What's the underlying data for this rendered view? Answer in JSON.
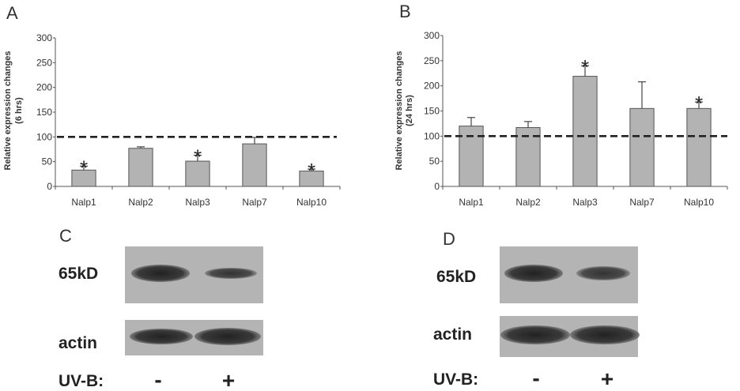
{
  "chart_data": [
    {
      "type": "bar",
      "panel": "A",
      "ylabel": "Relative expression changes",
      "ylabel_sub": "(6 hrs)",
      "categories": [
        "Nalp1",
        "Nalp2",
        "Nalp3",
        "Nalp7",
        "Nalp10"
      ],
      "values": [
        33,
        77,
        51,
        86,
        31
      ],
      "errors": [
        8,
        3,
        12,
        13,
        4
      ],
      "significant": [
        true,
        false,
        true,
        false,
        true
      ],
      "significance_marker": "*",
      "ylim": [
        0,
        300
      ],
      "yticks": [
        "0",
        "50",
        "100",
        "150",
        "200",
        "250",
        "300"
      ],
      "reference_line": 100,
      "grid": false,
      "bar_color": "#b3b3b3"
    },
    {
      "type": "bar",
      "panel": "B",
      "ylabel": "Relative expression changes",
      "ylabel_sub": "(24 hrs)",
      "categories": [
        "Nalp1",
        "Nalp2",
        "Nalp3",
        "Nalp7",
        "Nalp10"
      ],
      "values": [
        120,
        117,
        219,
        155,
        155
      ],
      "errors": [
        17,
        12,
        21,
        53,
        13
      ],
      "significant": [
        false,
        false,
        true,
        false,
        true
      ],
      "significance_marker": "*",
      "ylim": [
        0,
        300
      ],
      "yticks": [
        "0",
        "50",
        "100",
        "150",
        "200",
        "250",
        "300"
      ],
      "reference_line": 100,
      "grid": false,
      "bar_color": "#b3b3b3"
    }
  ],
  "blots": [
    {
      "panel": "C",
      "rows": [
        "65kD",
        "actin"
      ],
      "treatment_label": "UV-B:",
      "lanes": [
        "-",
        "+"
      ]
    },
    {
      "panel": "D",
      "rows": [
        "65kD",
        "actin"
      ],
      "treatment_label": "UV-B:",
      "lanes": [
        "-",
        "+"
      ]
    }
  ]
}
